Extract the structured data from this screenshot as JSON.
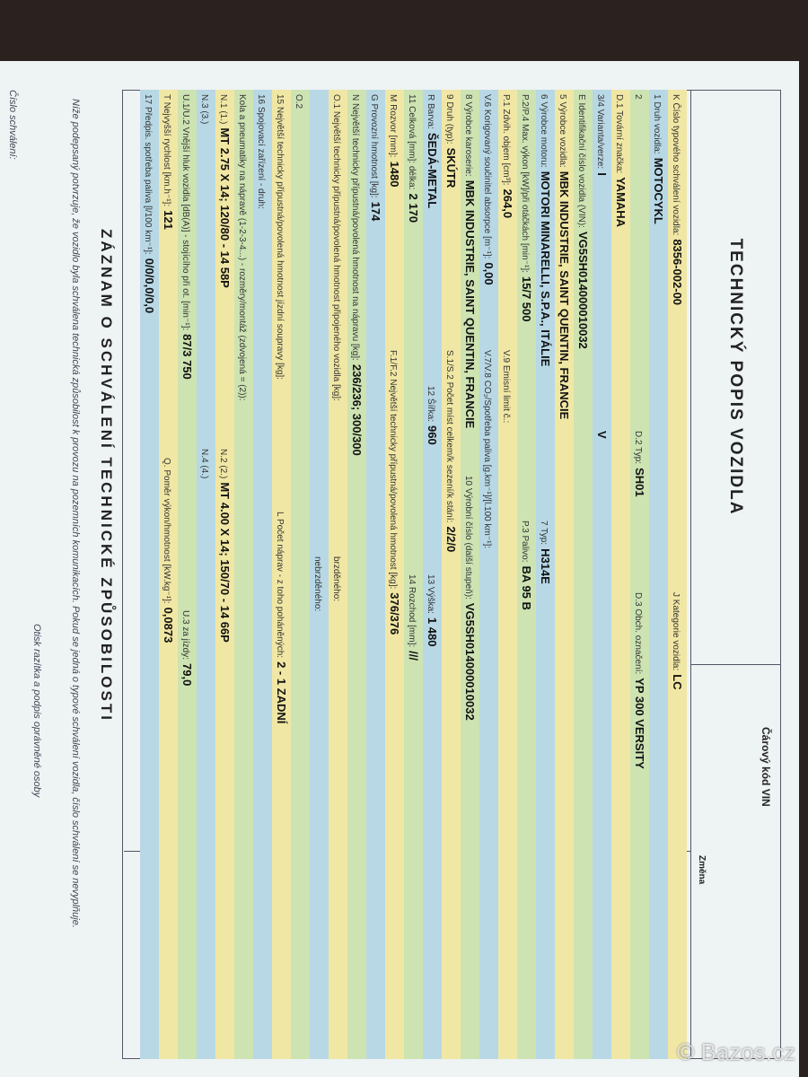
{
  "header": {
    "title": "TECHNICKÝ POPIS VOZIDLA",
    "barcode_label": "Čárový kód VIN",
    "change_label": "Změna"
  },
  "rows": [
    [
      {
        "label": "K Číslo typového schválení vozidla:",
        "value": "8356-002-00"
      },
      {
        "label": "J Kategorie vozidla:",
        "value": "LC"
      }
    ],
    [
      {
        "label": "1 Druh vozidla:",
        "value": "MOTOCYKL"
      }
    ],
    [
      {
        "label": "2"
      },
      {
        "label": "D.2 Typ:",
        "value": "SH01"
      },
      {
        "label": "D.3 Obch. označení:",
        "value": "YP 300 VERSITY"
      }
    ],
    [
      {
        "label": "D.1 Tovární značka:",
        "value": "YAMAHA"
      }
    ],
    [
      {
        "label": "3/4 Varianta/verze:",
        "value": "I"
      },
      {
        "value": "V"
      }
    ],
    [
      {
        "label": "E Identifikační číslo vozidla (VIN):",
        "value": "VG5SH014000010032"
      }
    ],
    [
      {
        "label": "5 Výrobce vozidla:",
        "value": "MBK INDUSTRIE, SAINT QUENTIN, FRANCIE"
      }
    ],
    [
      {
        "label": "6 Výrobce motoru:",
        "value": "MOTORI MINARELLI, S.P.A., ITÁLIE"
      },
      {
        "label": "7 Typ:",
        "value": "H314E"
      }
    ],
    [
      {
        "label": "P.2/P.4 Max. výkon [kW]/při otáčkách [min⁻¹]:",
        "value": "15/7 500"
      },
      {
        "label": "P.3 Palivo:",
        "value": "BA 95 B"
      }
    ],
    [
      {
        "label": "P.1 Zdvih. objem [cm³]:",
        "value": "264,0"
      },
      {
        "label": "V.9 Emisní limit č.:"
      }
    ],
    [
      {
        "label": "V.6 Korigovaný součinitel absorpce [m⁻¹]:",
        "value": "0,00"
      },
      {
        "label": "V.7/V.8 CO₂/Spotřeba paliva [g.km⁻¹]/[l.100 km⁻¹]:"
      }
    ],
    [
      {
        "label": "8 Výrobce karoserie:",
        "value": "MBK INDUSTRIE, SAINT QUENTIN, FRANCIE"
      },
      {
        "label": "10 Výrobní číslo (další stupeň):",
        "value": "VG5SH014000010032"
      }
    ],
    [
      {
        "label": "9 Druh (typ):",
        "value": "SKÚTR"
      },
      {
        "label": "S.1/S.2 Počet míst celkem/k sezení/k stání:",
        "value": "2/2/0"
      }
    ],
    [
      {
        "label": "R Barva:",
        "value": "ŠEDÁ-METAL"
      },
      {
        "label": "12 Šířka:",
        "value": "960"
      },
      {
        "label": "13 Výška:",
        "value": "1 480"
      }
    ],
    [
      {
        "label": "11 Celková [mm]: délka:",
        "value": "2 170"
      },
      {
        "label": "14 Rozchod [mm]:",
        "value": "///"
      }
    ],
    [
      {
        "label": "M Rozvor [mm]:",
        "value": "1480"
      },
      {
        "label": "F.1/F.2 Největší technicky přípustná/povolená hmotnost [kg]:",
        "value": "376/376"
      }
    ],
    [
      {
        "label": "G Provozní hmotnost [kg]:",
        "value": "174"
      }
    ],
    [
      {
        "label": "N Největší technicky přípustná/povolená hmotnost na nápravu [kg]:",
        "value": "236/236; 300/300"
      }
    ],
    [
      {
        "label": "O.1 Největší technicky přípustná/povolená hmotnost připojeného vozidla [kg]:"
      },
      {
        "label": "brzděného:"
      }
    ],
    [
      {
        "label": "nebrzděného:"
      }
    ],
    [
      {
        "label": "O.2"
      }
    ],
    [
      {
        "label": "15 Největší technicky přípustná/povolená hmotnost jízdní soupravy [kg]:"
      },
      {
        "label": "L Počet náprav - z toho poháněných:",
        "value": "2 - 1 ZADNÍ"
      }
    ],
    [
      {
        "label": "16 Spojovací zařízení - druh:"
      }
    ],
    [
      {
        "label": "Kola a pneumatiky na nápravě (1-2-3-4...) - rozměry/montáž (zdvojená = (2)):"
      }
    ],
    [
      {
        "label": "N.1 (1.)",
        "value": "MT 2.75 X 14; 120/80 - 14 58P"
      },
      {
        "label": "N.2 (2.)",
        "value": "MT 4.00 X 14; 150/70 - 14 66P"
      }
    ],
    [
      {
        "label": "N.3 (3.)"
      },
      {
        "label": "N.4 (4.)"
      }
    ],
    [
      {
        "label": "U.1/U.2 Vnější hluk vozidla [dB(A)] - stojícího při ot. [min⁻¹]:",
        "value": "87/3 750"
      },
      {
        "label": "U.3 za jízdy:",
        "value": "79,0"
      }
    ],
    [
      {
        "label": "T Nejvyšší rychlost [km.h⁻¹]:",
        "value": "121"
      },
      {
        "label": "Q. Poměr výkon/hmotnost [kW.kg⁻¹]:",
        "value": "0,0873"
      }
    ],
    [
      {
        "label": "17 Předpis. spotřeba paliva [l/100 km⁻¹]:",
        "value": "0/0/0,0/0,0"
      }
    ]
  ],
  "footer": {
    "title": "ZÁZNAM O SCHVÁLENÍ TECHNICKÉ ZPŮSOBILOSTI",
    "statement": "Níže podepsaný potvrzuje, že vozidlo byla schválena technická způsobilost k provozu na pozemních komunikacích. Pokud se jedná o typové schválení vozidla, číslo schválení se nevyplňuje.",
    "approval_number_label": "Číslo schválení:",
    "stamp_label": "Otisk razítka a podpis oprávněné osoby"
  },
  "watermark": "© Bazos.cz"
}
